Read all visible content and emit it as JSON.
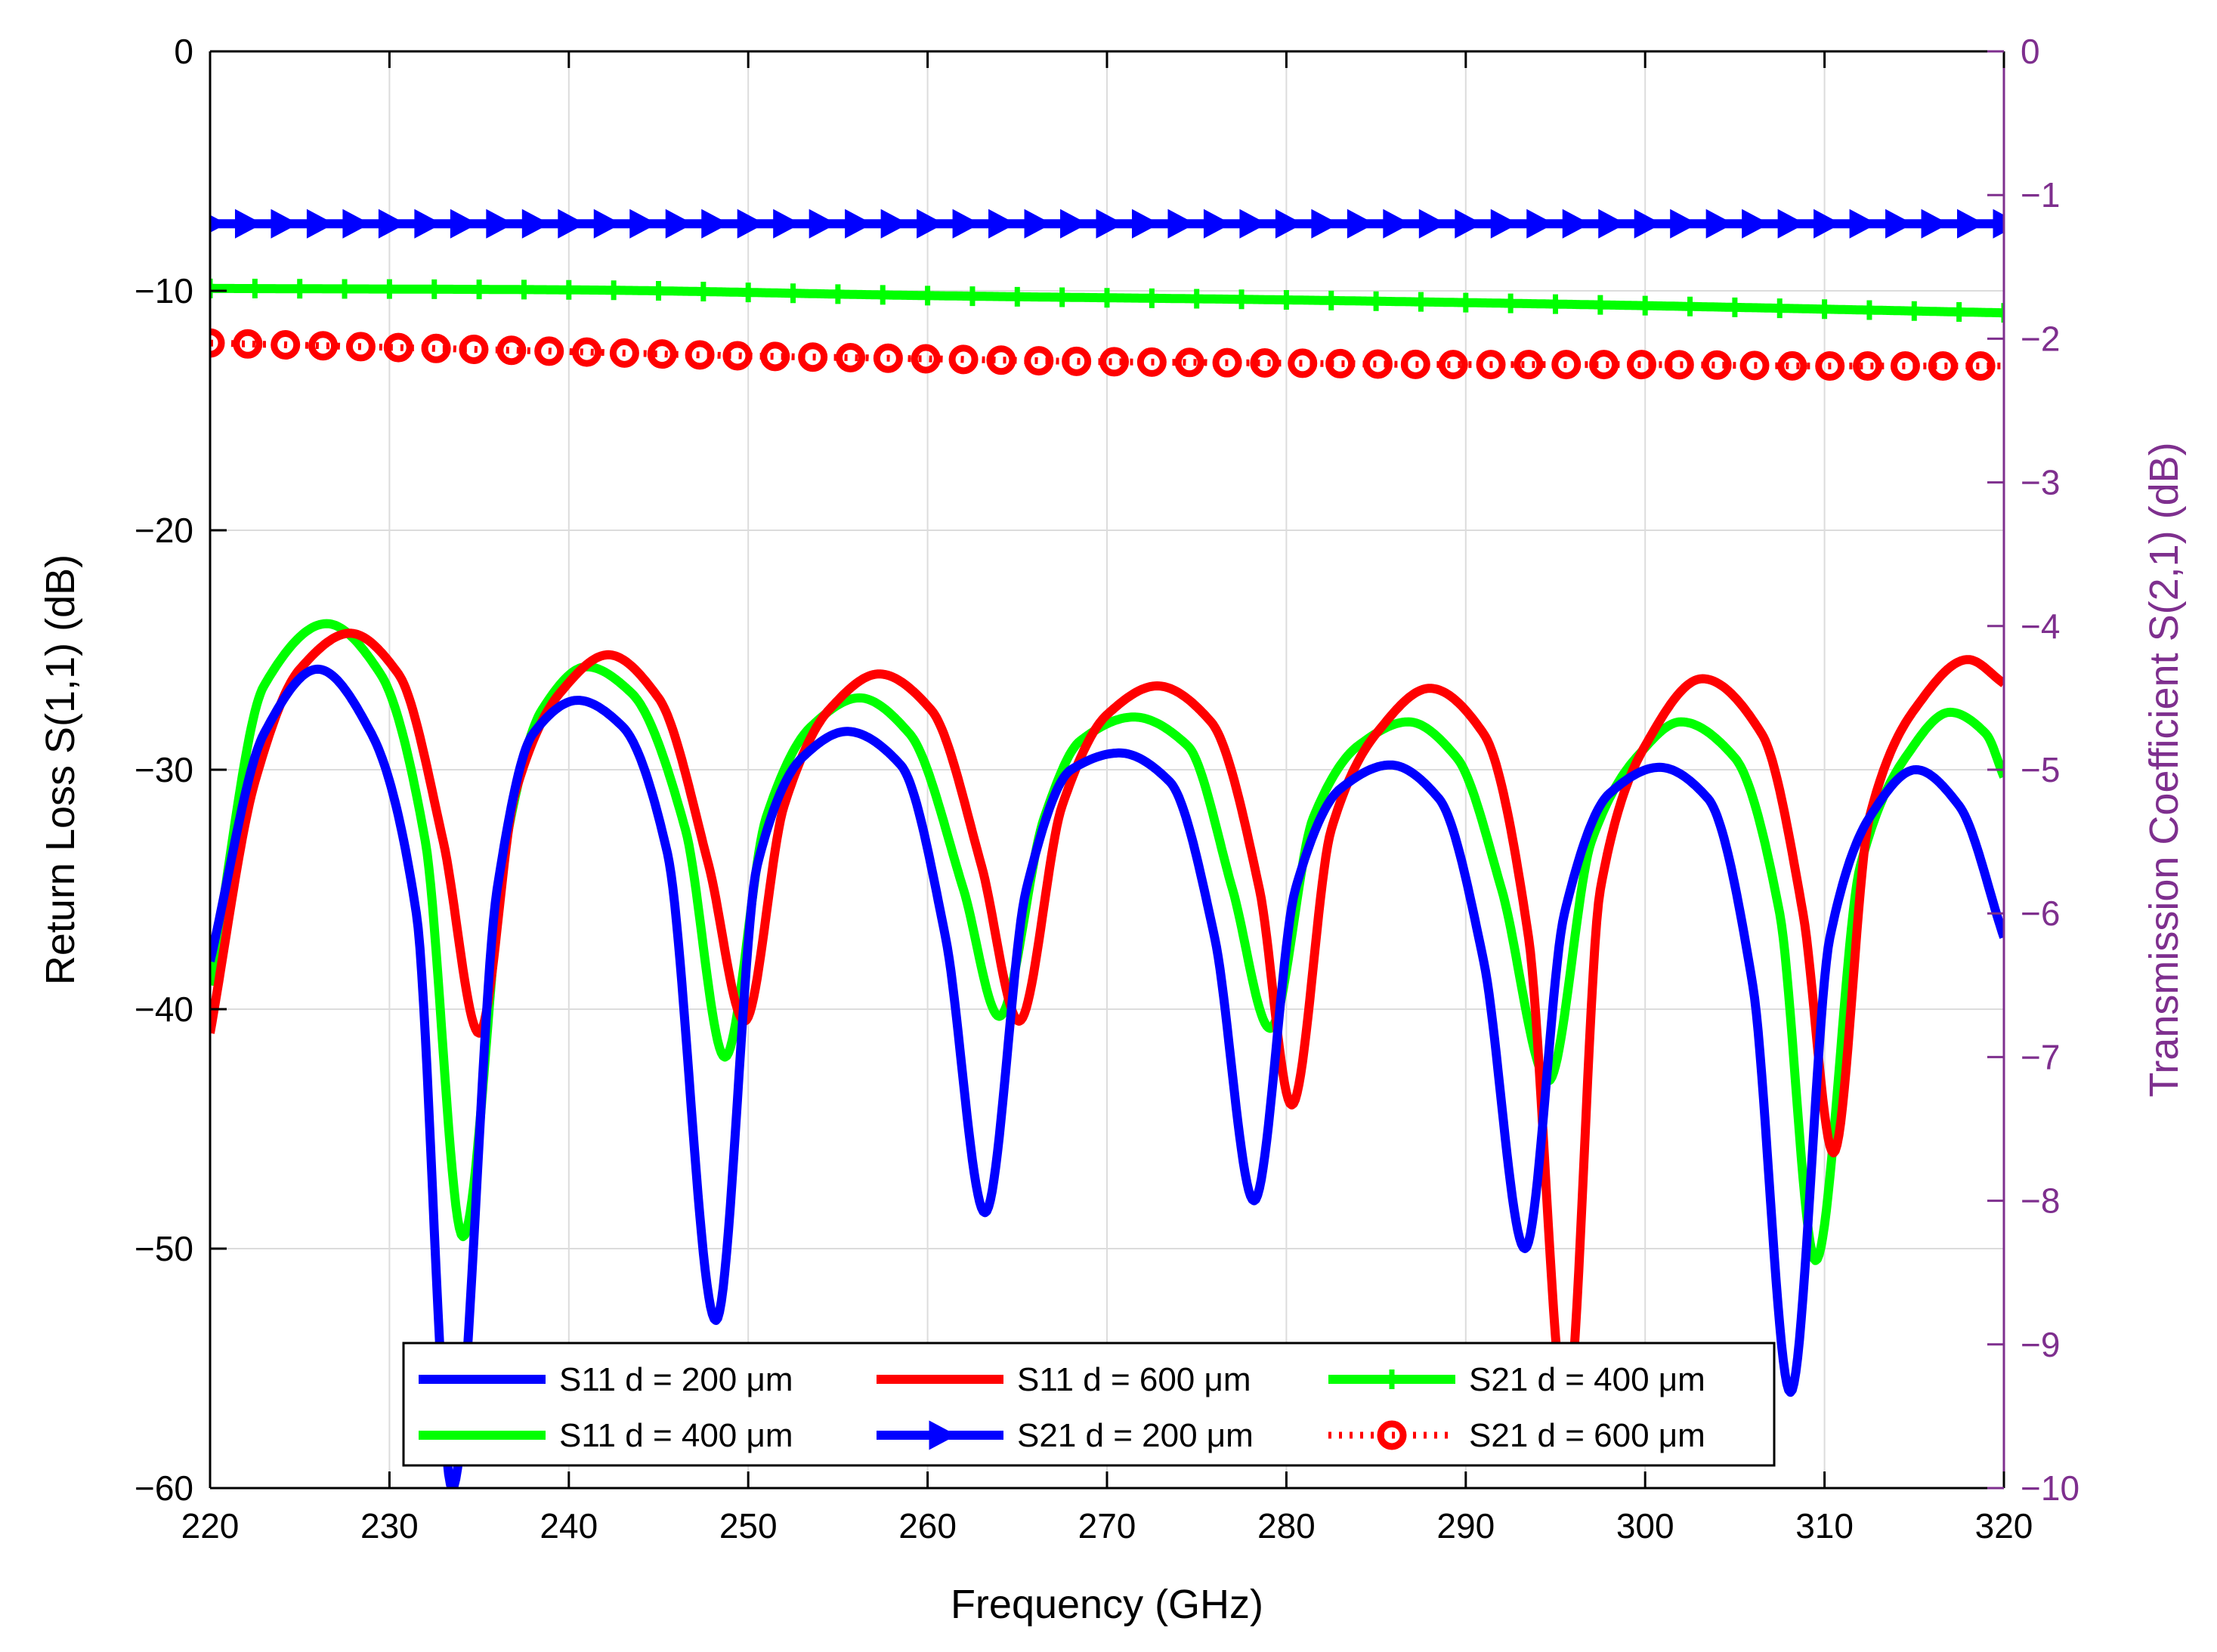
{
  "chart_data": {
    "type": "line",
    "title": "",
    "xlabel": "Frequency (GHz)",
    "ylabel": "Return Loss S(1,1) (dB)",
    "y2label": "Transmission Coefficient S(2,1) (dB)",
    "xlim": [
      220,
      320
    ],
    "ylim": [
      -60,
      0
    ],
    "y2lim": [
      -10,
      0
    ],
    "xticks": [
      220,
      230,
      240,
      250,
      260,
      270,
      280,
      290,
      300,
      310,
      320
    ],
    "yticks": [
      0,
      -10,
      -20,
      -30,
      -40,
      -50,
      -60
    ],
    "y2ticks": [
      0,
      -1,
      -2,
      -3,
      -4,
      -5,
      -6,
      -7,
      -8,
      -9,
      -10
    ],
    "xtick_labels": [
      "220",
      "230",
      "240",
      "250",
      "260",
      "270",
      "280",
      "290",
      "300",
      "310",
      "320"
    ],
    "ytick_labels": [
      "0",
      "−10",
      "−20",
      "−30",
      "−40",
      "−50",
      "−60"
    ],
    "y2tick_labels": [
      "0",
      "−1",
      "−2",
      "−3",
      "−4",
      "−5",
      "−6",
      "−7",
      "−8",
      "−9",
      "−10"
    ],
    "grid": true,
    "legend_position": "bottom-center",
    "legend_columns": 3,
    "colors": {
      "blue": "#0000ff",
      "red": "#ff0000",
      "green": "#00ff00",
      "right_axis": "#7e2f8e",
      "axis": "#000000",
      "grid": "#dcdcdc"
    },
    "series": [
      {
        "name": "S11 d = 200 μm",
        "axis": "left",
        "color": "#0000ff",
        "style": "solid",
        "marker": "none",
        "x": [
          220,
          223,
          226,
          229,
          231.5,
          233.5,
          236,
          238,
          240.5,
          243,
          245.5,
          248.2,
          250.5,
          253,
          255.5,
          258.5,
          261,
          263.2,
          265.5,
          268,
          270.7,
          273.5,
          276,
          278.2,
          280.5,
          283,
          285.8,
          288.5,
          291,
          293.3,
          295.5,
          298,
          300.8,
          303.5,
          306,
          308.1,
          310.3,
          312.5,
          315.1,
          317.5,
          320
        ],
        "y": [
          -38,
          -28.5,
          -25.8,
          -28.5,
          -36,
          -60,
          -35,
          -28.5,
          -27.1,
          -28.2,
          -33.5,
          -53,
          -34,
          -29.5,
          -28.4,
          -29.8,
          -37,
          -48.5,
          -35,
          -30,
          -29.3,
          -30.5,
          -37,
          -48,
          -35,
          -30.8,
          -29.8,
          -31.2,
          -38,
          -50,
          -36,
          -31,
          -29.9,
          -31.2,
          -39,
          -56,
          -37,
          -32,
          -30,
          -31.5,
          -37
        ]
      },
      {
        "name": "S11 d = 400 μm",
        "axis": "left",
        "color": "#00ff00",
        "style": "solid",
        "marker": "none",
        "x": [
          220,
          223,
          226.5,
          229.5,
          232,
          234.1,
          236.5,
          238.5,
          241,
          243.5,
          246.5,
          248.7,
          251,
          253.5,
          256.2,
          259,
          262,
          264,
          266.5,
          268.5,
          271.5,
          274.5,
          277,
          279.1,
          281.5,
          284,
          286.8,
          289.5,
          292,
          294.6,
          297,
          299.5,
          302,
          305,
          307.5,
          309.5,
          312,
          314.5,
          317,
          319,
          320
        ],
        "y": [
          -39,
          -26.5,
          -23.9,
          -26,
          -33,
          -49.5,
          -33,
          -27.5,
          -25.7,
          -26.8,
          -32.5,
          -42,
          -32,
          -28.2,
          -27,
          -28.5,
          -35,
          -40.3,
          -32,
          -28.8,
          -27.8,
          -29,
          -35,
          -40.8,
          -32,
          -29,
          -28,
          -29.5,
          -35,
          -43,
          -33,
          -29.5,
          -28,
          -29.5,
          -36,
          -50.5,
          -34,
          -29.5,
          -27.6,
          -28.5,
          -30.3
        ]
      },
      {
        "name": "S11 d = 600 μm",
        "axis": "left",
        "color": "#ff0000",
        "style": "solid",
        "marker": "none",
        "x": [
          220,
          222.5,
          225,
          227.8,
          230.5,
          233,
          235,
          237,
          239.5,
          242.2,
          245,
          247.8,
          249.8,
          252,
          254.5,
          257.3,
          260.2,
          263,
          265.1,
          267.5,
          270,
          272.8,
          275.8,
          278.5,
          280.3,
          282.5,
          285,
          288,
          291,
          293.5,
          295.6,
          297.5,
          300,
          303.2,
          306.5,
          308.8,
          310.5,
          312.5,
          315,
          318,
          320
        ],
        "y": [
          -41,
          -30.5,
          -25.8,
          -24.3,
          -26,
          -33,
          -41,
          -31,
          -26.8,
          -25.2,
          -27,
          -34,
          -40.5,
          -31.5,
          -27.5,
          -26,
          -27.5,
          -34,
          -40.5,
          -31.5,
          -27.7,
          -26.5,
          -28,
          -35,
          -44,
          -32.5,
          -28.5,
          -26.6,
          -28.5,
          -37,
          -57,
          -35,
          -29,
          -26.2,
          -28.5,
          -36,
          -46,
          -32,
          -27.5,
          -25.4,
          -26.4
        ]
      },
      {
        "name": "S21 d = 200 μm",
        "axis": "right",
        "color": "#0000ff",
        "style": "solid",
        "marker": "triangle-right",
        "x": [
          220,
          320
        ],
        "y": [
          -1.2,
          -1.2
        ]
      },
      {
        "name": "S21 d = 400 μm",
        "axis": "right",
        "color": "#00ff00",
        "style": "solid",
        "marker": "plus",
        "x": [
          220,
          240,
          260,
          280,
          300,
          320
        ],
        "y": [
          -1.65,
          -1.66,
          -1.7,
          -1.73,
          -1.77,
          -1.82
        ]
      },
      {
        "name": "S21 d = 600 μm",
        "axis": "right",
        "color": "#ff0000",
        "style": "dotted",
        "marker": "circle",
        "x": [
          220,
          230,
          240,
          250,
          260,
          270,
          280,
          290,
          300,
          310,
          320
        ],
        "y": [
          -2.03,
          -2.06,
          -2.09,
          -2.12,
          -2.14,
          -2.16,
          -2.17,
          -2.18,
          -2.18,
          -2.19,
          -2.19
        ]
      }
    ]
  }
}
